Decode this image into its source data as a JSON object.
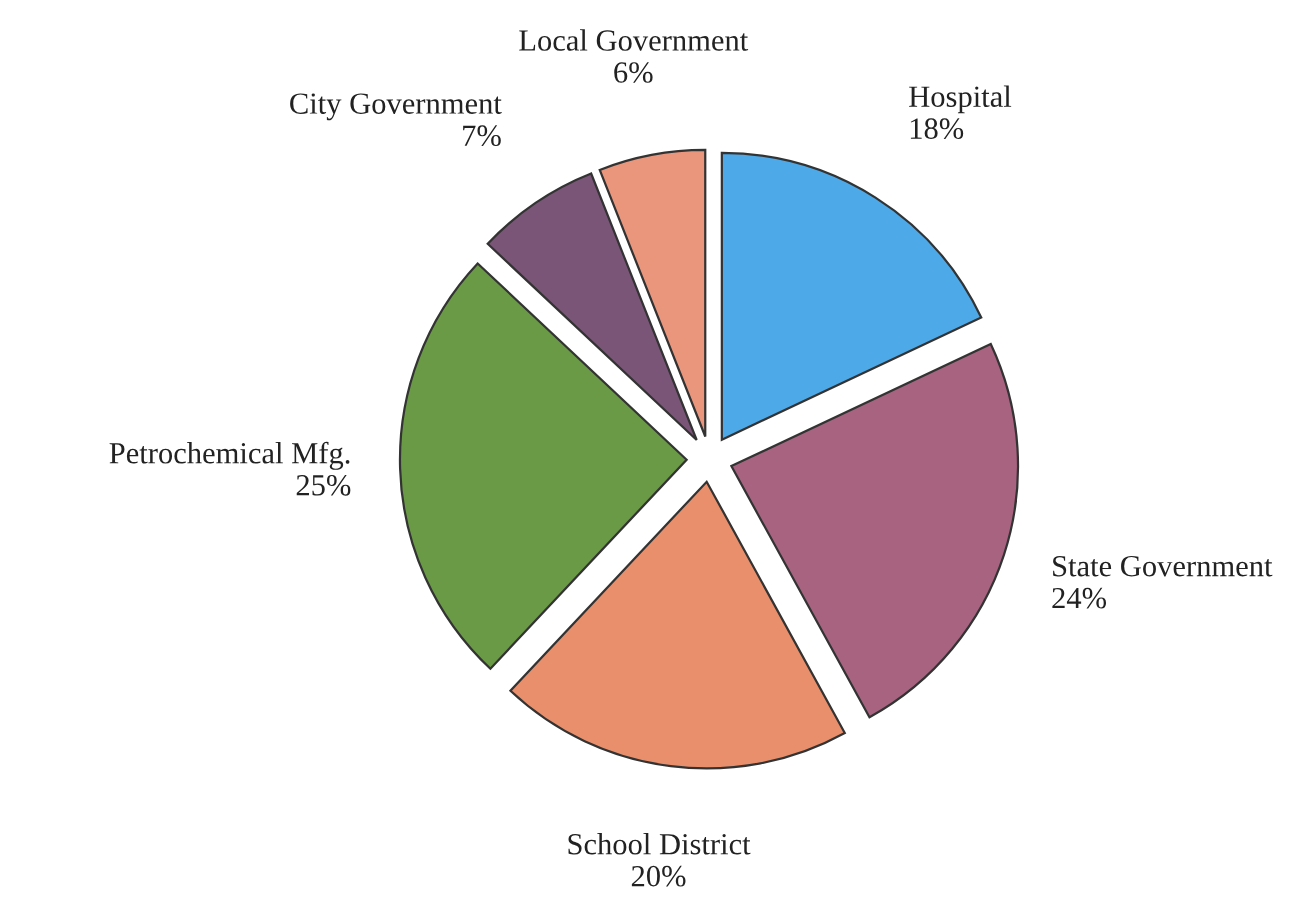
{
  "chart_data": {
    "type": "pie",
    "categories": [
      "Hospital",
      "State Government",
      "School District",
      "Petrochemical Mfg.",
      "City Government",
      "Local Government"
    ],
    "values": [
      18,
      24,
      20,
      25,
      7,
      6
    ],
    "value_labels": [
      "18%",
      "24%",
      "20%",
      "25%",
      "7%",
      "6%"
    ],
    "colors": [
      "#4ea9e8",
      "#a7637f",
      "#e98f6c",
      "#6a9a46",
      "#7b5578",
      "#ea967c"
    ]
  }
}
